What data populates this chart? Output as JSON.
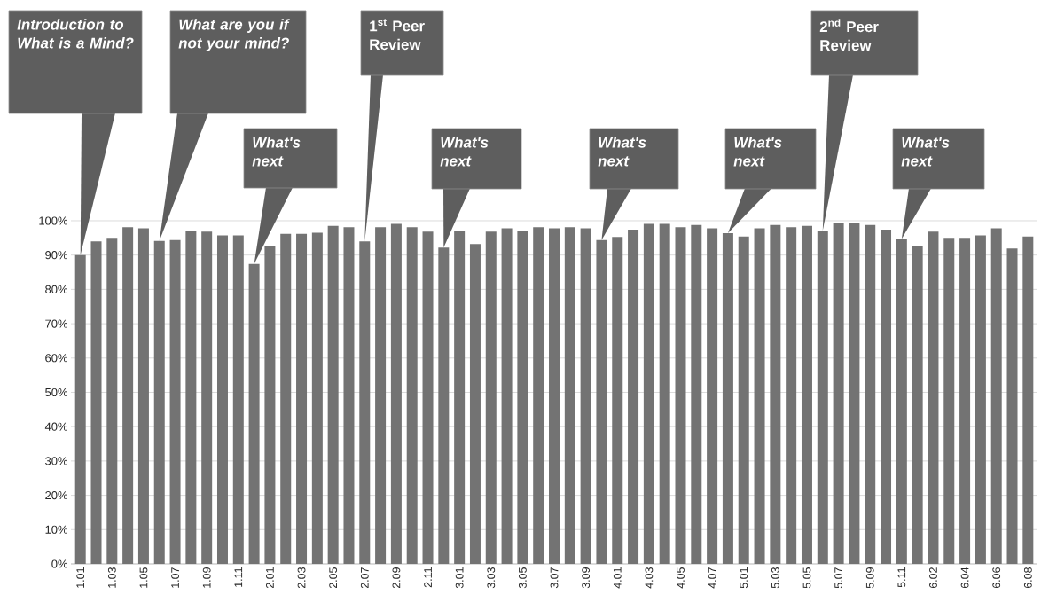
{
  "chart_data": {
    "type": "bar",
    "color": "#737373",
    "grid": "y",
    "categories": [
      "1.01",
      null,
      "1.03",
      null,
      "1.05",
      null,
      "1.07",
      null,
      "1.09",
      null,
      "1.11",
      null,
      "2.01",
      null,
      "2.03",
      null,
      "2.05",
      null,
      "2.07",
      null,
      "2.09",
      null,
      "2.11",
      null,
      "3.01",
      null,
      "3.03",
      null,
      "3.05",
      null,
      "3.07",
      null,
      "3.09",
      null,
      "4.01",
      null,
      "4.03",
      null,
      "4.05",
      null,
      "4.07",
      null,
      "5.01",
      null,
      "5.03",
      null,
      "5.05",
      null,
      "5.07",
      null,
      "5.09",
      null,
      "5.11",
      null,
      "6.02",
      null,
      "6.04",
      null,
      "6.06",
      null,
      "6.08"
    ],
    "values": [
      90.0,
      94.0,
      95.0,
      98.1,
      97.8,
      94.1,
      94.4,
      97.1,
      96.8,
      95.7,
      95.7,
      87.4,
      92.6,
      96.2,
      96.2,
      96.5,
      98.5,
      98.1,
      94.0,
      98.1,
      99.1,
      98.1,
      96.8,
      92.2,
      97.1,
      93.2,
      96.8,
      97.8,
      97.1,
      98.1,
      97.8,
      98.1,
      97.8,
      94.4,
      95.3,
      97.4,
      99.1,
      99.1,
      98.1,
      98.8,
      97.8,
      96.4,
      95.4,
      97.8,
      98.8,
      98.1,
      98.5,
      97.1,
      99.5,
      99.5,
      98.8,
      97.4,
      94.7,
      92.6,
      96.8,
      95.0,
      95.0,
      95.7,
      97.8,
      91.9,
      95.4
    ],
    "ylim": [
      0,
      100
    ],
    "yticks": [
      {
        "value": 0,
        "label": "0%"
      },
      {
        "value": 10,
        "label": "10%"
      },
      {
        "value": 20,
        "label": "20%"
      },
      {
        "value": 30,
        "label": "30%"
      },
      {
        "value": 40,
        "label": "40%"
      },
      {
        "value": 50,
        "label": "50%"
      },
      {
        "value": 60,
        "label": "60%"
      },
      {
        "value": 70,
        "label": "70%"
      },
      {
        "value": 80,
        "label": "80%"
      },
      {
        "value": 90,
        "label": "90%"
      },
      {
        "value": 100,
        "label": "100%"
      }
    ],
    "annotations": [
      "Introduction to What is a Mind?",
      "What are you if not your mind?",
      "What's next",
      "1$^{st}$ Peer Review",
      "What's next",
      "What's next",
      "What's next",
      "2$^{nd}$ Peer Review",
      "What's next"
    ]
  }
}
